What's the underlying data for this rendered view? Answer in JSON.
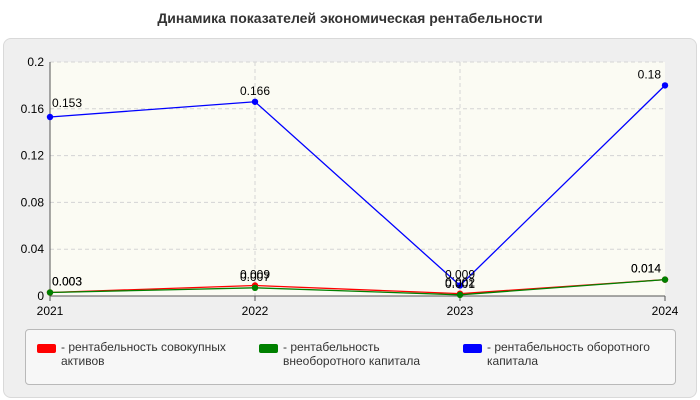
{
  "title": "Динамика показателей экономическая рентабельности",
  "chart_data": {
    "type": "line",
    "x": [
      "2021",
      "2022",
      "2023",
      "2024"
    ],
    "ylim": [
      0,
      0.2
    ],
    "yticks": [
      "0",
      "0.04",
      "0.08",
      "0.12",
      "0.16",
      "0.2"
    ],
    "grid": true,
    "legend_position": "bottom",
    "series": [
      {
        "name": "- рентабельность совокупных активов",
        "color": "#ff0000",
        "values": [
          0.003,
          0.009,
          0.002,
          0.014
        ],
        "labels": [
          "0.003",
          "0.009",
          "0.002",
          "0.014"
        ]
      },
      {
        "name": "- рентабельность внеоборотного капитала",
        "color": "#008000",
        "values": [
          0.003,
          0.007,
          0.001,
          0.014
        ],
        "labels": [
          "0.003",
          "0.007",
          "0.001",
          "0.014"
        ]
      },
      {
        "name": "- рентабельность оборотного капитала",
        "color": "#0000ff",
        "values": [
          0.153,
          0.166,
          0.009,
          0.18
        ],
        "labels": [
          "0.153",
          "0.166",
          "0.009",
          "0.18"
        ]
      }
    ]
  }
}
